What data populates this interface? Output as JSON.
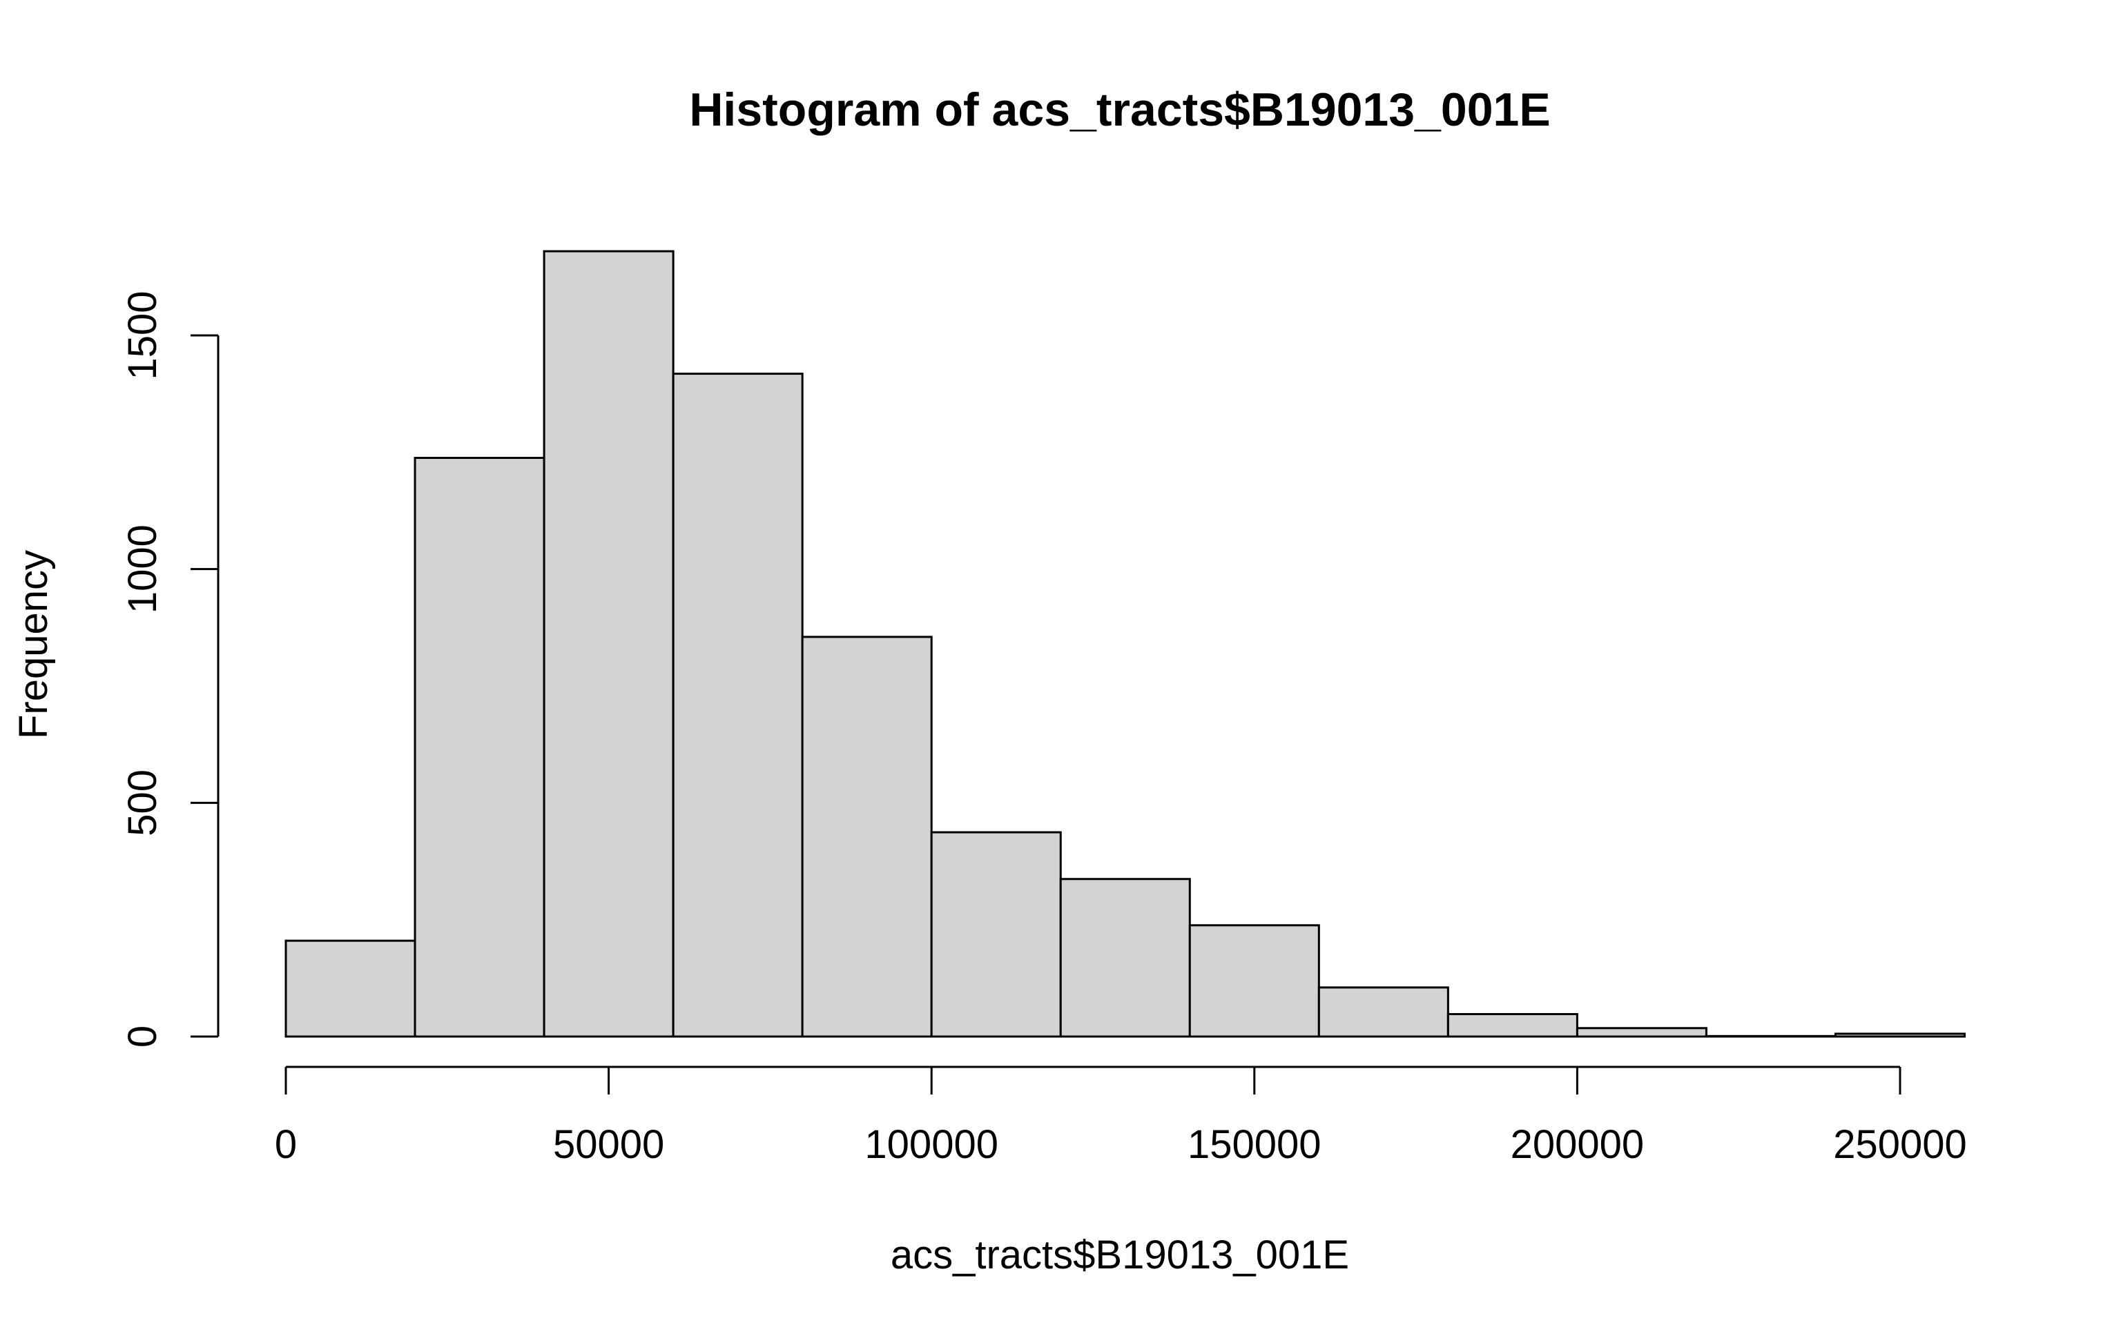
{
  "chart_data": {
    "type": "bar",
    "subtype": "histogram",
    "title": "Histogram of acs_tracts$B19013_001E",
    "xlabel": "acs_tracts$B19013_001E",
    "ylabel": "Frequency",
    "bin_width": 20000,
    "bins": [
      {
        "start": 0,
        "end": 20000,
        "count": 205
      },
      {
        "start": 20000,
        "end": 40000,
        "count": 1238
      },
      {
        "start": 40000,
        "end": 60000,
        "count": 1680
      },
      {
        "start": 60000,
        "end": 80000,
        "count": 1418
      },
      {
        "start": 80000,
        "end": 100000,
        "count": 855
      },
      {
        "start": 100000,
        "end": 120000,
        "count": 437
      },
      {
        "start": 120000,
        "end": 140000,
        "count": 337
      },
      {
        "start": 140000,
        "end": 160000,
        "count": 238
      },
      {
        "start": 160000,
        "end": 180000,
        "count": 105
      },
      {
        "start": 180000,
        "end": 200000,
        "count": 48
      },
      {
        "start": 200000,
        "end": 220000,
        "count": 18
      },
      {
        "start": 220000,
        "end": 240000,
        "count": 1
      },
      {
        "start": 240000,
        "end": 260000,
        "count": 6
      }
    ],
    "xlim": [
      0,
      260000
    ],
    "ylim": [
      0,
      1700
    ],
    "x_ticks": [
      0,
      50000,
      100000,
      150000,
      200000,
      250000
    ],
    "x_tick_labels": [
      "0",
      "50000",
      "100000",
      "150000",
      "200000",
      "250000"
    ],
    "y_ticks": [
      0,
      500,
      1000,
      1500
    ],
    "y_tick_labels": [
      "0",
      "500",
      "1000",
      "1500"
    ],
    "bar_fill": "#d3d3d3",
    "bar_stroke": "#000000",
    "grid": false,
    "legend": "none"
  }
}
